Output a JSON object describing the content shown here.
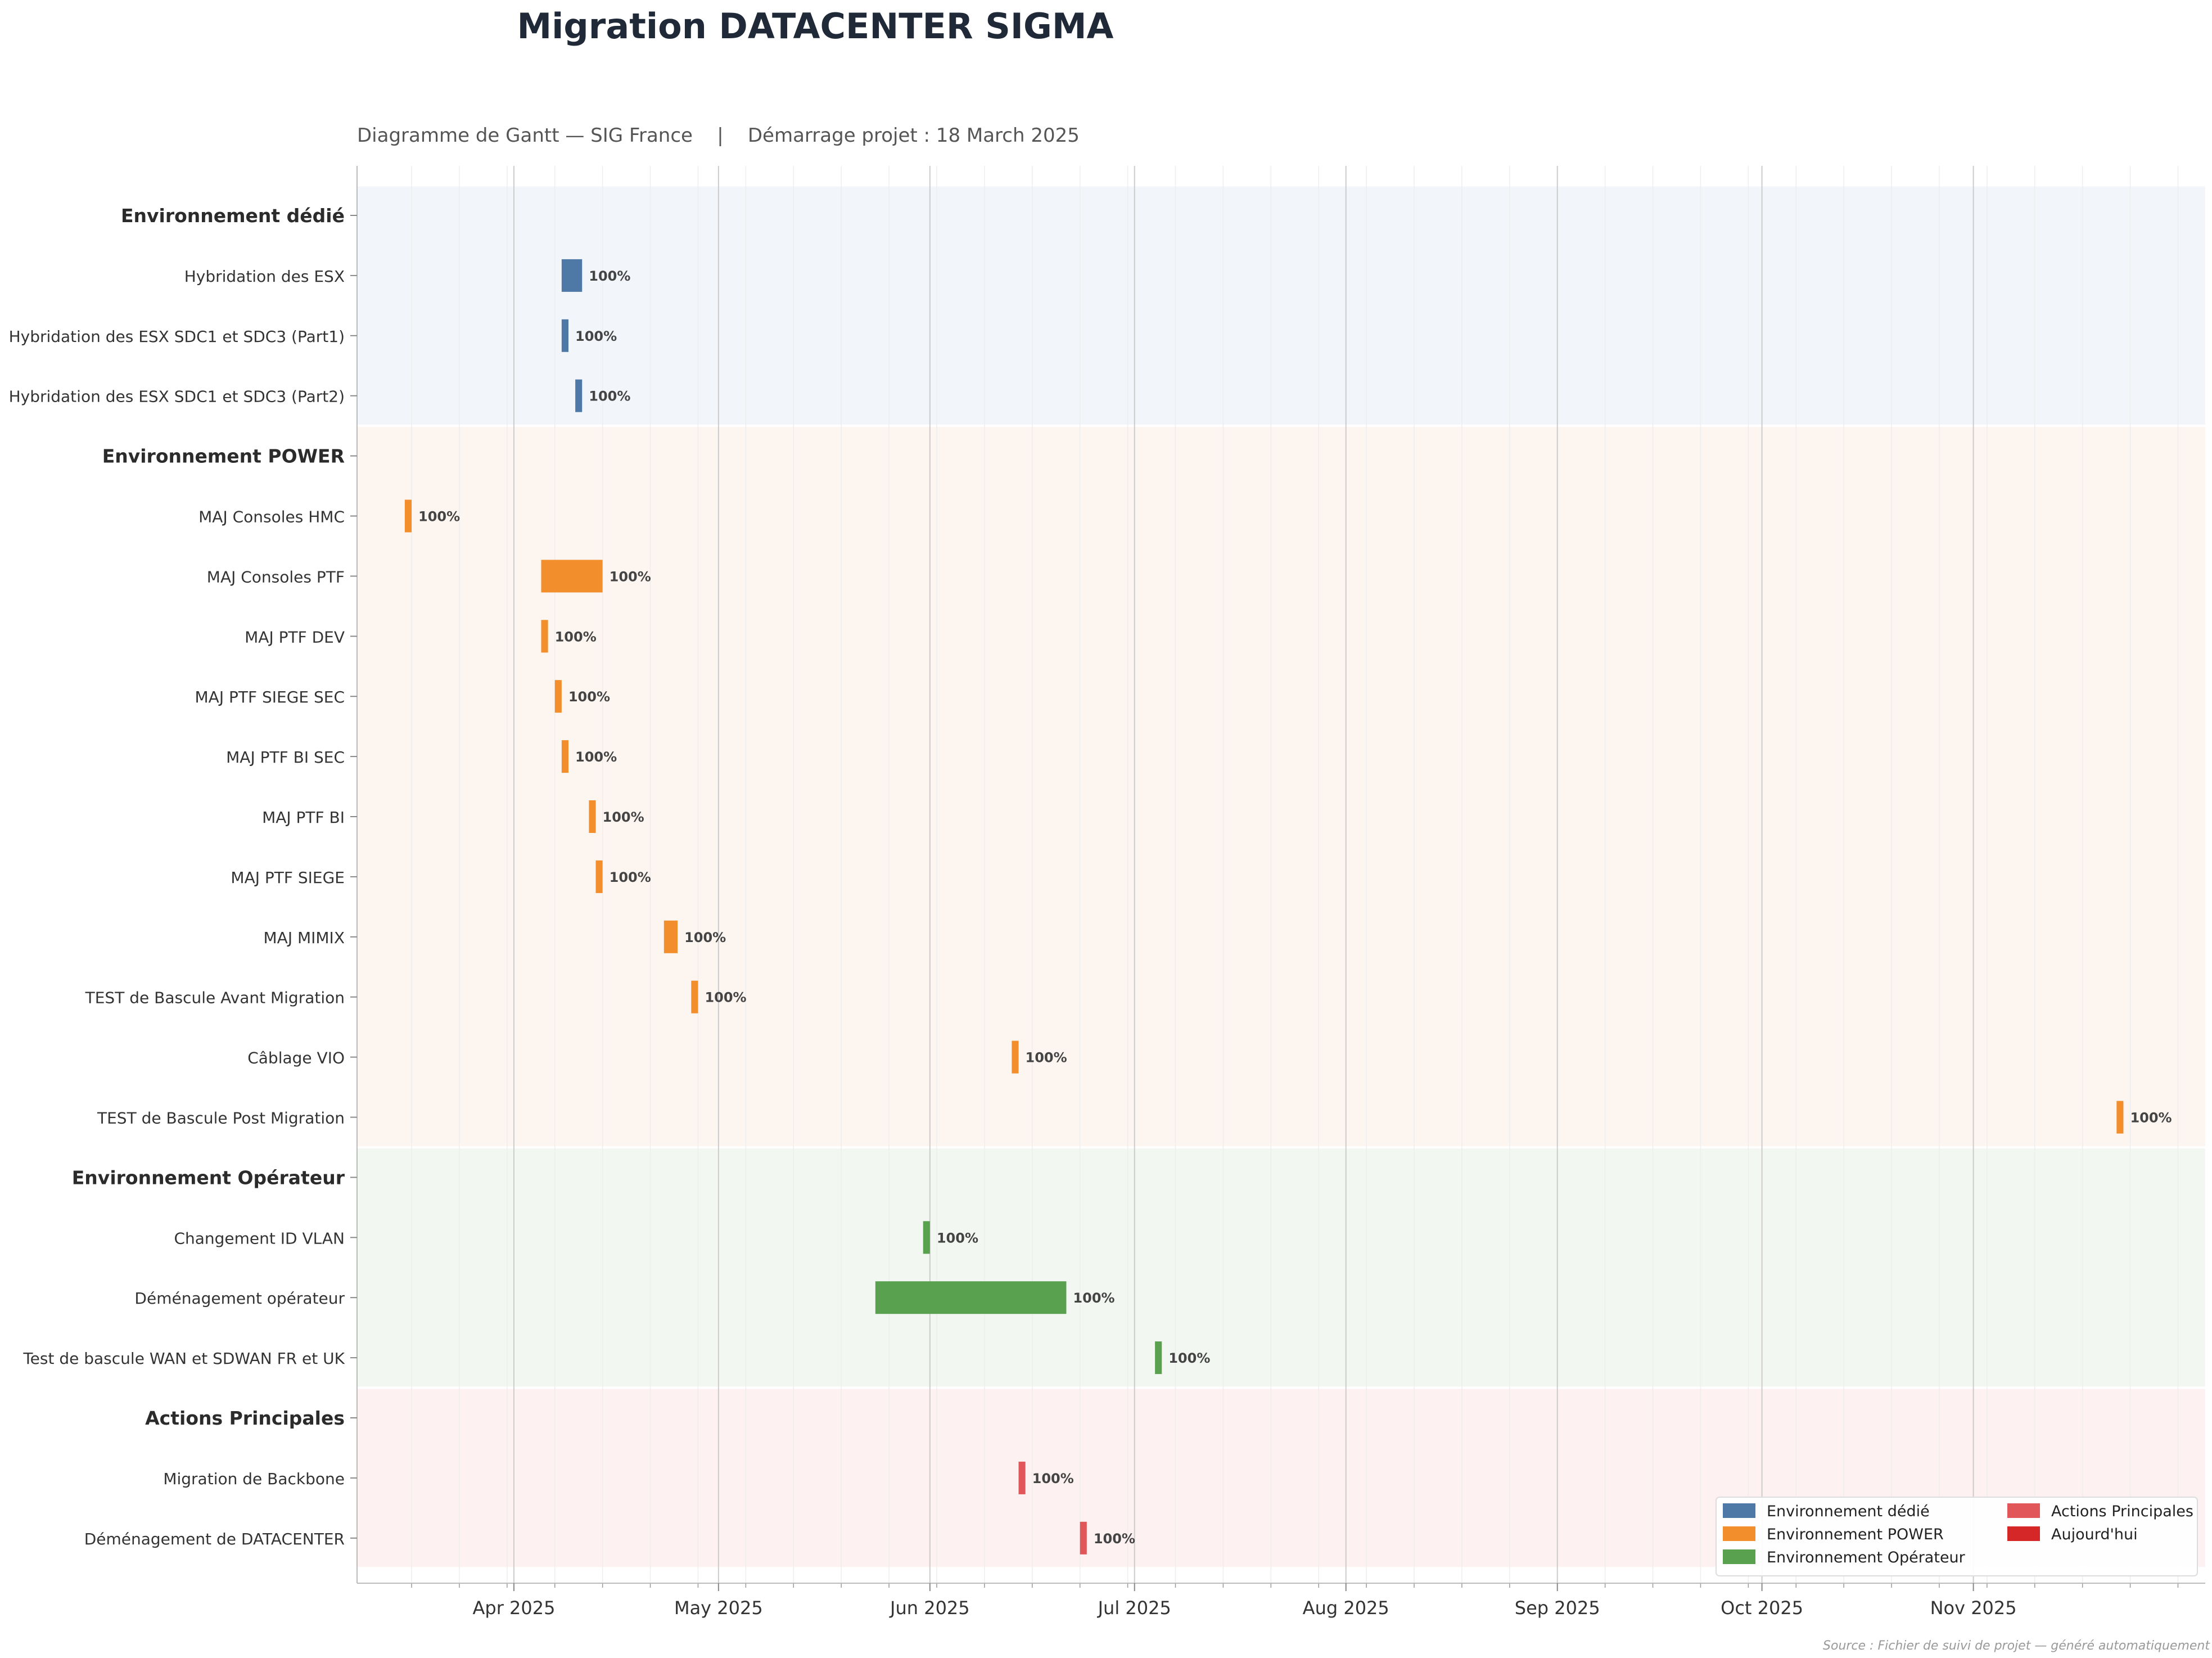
{
  "title": "Migration DATACENTER SIGMA",
  "subtitle": "Diagramme de Gantt — SIG France    |    Démarrage projet : 18 March 2025",
  "footer": "Source : Fichier de suivi de projet — généré automatiquement",
  "chart_data": {
    "type": "gantt",
    "x_range": [
      "2025-03-09",
      "2025-12-05"
    ],
    "x_ticks": [
      {
        "date": "2025-04-01",
        "label": "Apr 2025"
      },
      {
        "date": "2025-05-01",
        "label": "May 2025"
      },
      {
        "date": "2025-06-01",
        "label": "Jun 2025"
      },
      {
        "date": "2025-07-01",
        "label": "Jul 2025"
      },
      {
        "date": "2025-08-01",
        "label": "Aug 2025"
      },
      {
        "date": "2025-09-01",
        "label": "Sep 2025"
      },
      {
        "date": "2025-10-01",
        "label": "Oct 2025"
      },
      {
        "date": "2025-11-01",
        "label": "Nov 2025"
      }
    ],
    "grid": true,
    "legend_position": "bottom-right",
    "legend": [
      {
        "label": "Environnement dédié",
        "color": "#4e79a7"
      },
      {
        "label": "Environnement POWER",
        "color": "#f28e2b"
      },
      {
        "label": "Environnement Opérateur",
        "color": "#59a14f"
      },
      {
        "label": "Actions Principales",
        "color": "#e15759"
      },
      {
        "label": "Aujourd'hui",
        "color": "#d62728"
      }
    ],
    "groups": [
      {
        "name": "Environnement dédié",
        "color": "#4e79a7",
        "band": "#f2f5fa",
        "tasks": [
          {
            "name": "Hybridation des ESX",
            "start": "2025-04-08",
            "end": "2025-04-11",
            "progress": "100%"
          },
          {
            "name": "Hybridation des ESX SDC1 et SDC3 (Part1)",
            "start": "2025-04-08",
            "end": "2025-04-09",
            "progress": "100%"
          },
          {
            "name": "Hybridation des ESX SDC1 et SDC3 (Part2)",
            "start": "2025-04-10",
            "end": "2025-04-11",
            "progress": "100%"
          }
        ]
      },
      {
        "name": "Environnement POWER",
        "color": "#f28e2b",
        "band": "#fdf5f0",
        "tasks": [
          {
            "name": "MAJ Consoles HMC",
            "start": "2025-03-16",
            "end": "2025-03-17",
            "progress": "100%"
          },
          {
            "name": "MAJ Consoles PTF",
            "start": "2025-04-05",
            "end": "2025-04-14",
            "progress": "100%"
          },
          {
            "name": "MAJ PTF DEV",
            "start": "2025-04-05",
            "end": "2025-04-06",
            "progress": "100%"
          },
          {
            "name": "MAJ PTF SIEGE SEC",
            "start": "2025-04-07",
            "end": "2025-04-08",
            "progress": "100%"
          },
          {
            "name": "MAJ PTF BI SEC",
            "start": "2025-04-08",
            "end": "2025-04-09",
            "progress": "100%"
          },
          {
            "name": "MAJ PTF BI",
            "start": "2025-04-12",
            "end": "2025-04-13",
            "progress": "100%"
          },
          {
            "name": "MAJ PTF SIEGE",
            "start": "2025-04-13",
            "end": "2025-04-14",
            "progress": "100%"
          },
          {
            "name": "MAJ MIMIX",
            "start": "2025-04-23",
            "end": "2025-04-25",
            "progress": "100%"
          },
          {
            "name": "TEST de Bascule Avant Migration",
            "start": "2025-04-27",
            "end": "2025-04-28",
            "progress": "100%"
          },
          {
            "name": "Câblage VIO",
            "start": "2025-06-13",
            "end": "2025-06-14",
            "progress": "100%"
          },
          {
            "name": "TEST de Bascule Post Migration",
            "start": "2025-11-22",
            "end": "2025-11-23",
            "progress": "100%"
          }
        ]
      },
      {
        "name": "Environnement Opérateur",
        "color": "#59a14f",
        "band": "#f3f7f1",
        "tasks": [
          {
            "name": "Changement ID VLAN",
            "start": "2025-05-31",
            "end": "2025-06-01",
            "progress": "100%"
          },
          {
            "name": "Déménagement opérateur",
            "start": "2025-05-24",
            "end": "2025-06-21",
            "progress": "100%"
          },
          {
            "name": "Test de bascule WAN et SDWAN FR et UK",
            "start": "2025-07-04",
            "end": "2025-07-05",
            "progress": "100%"
          }
        ]
      },
      {
        "name": "Actions Principales",
        "color": "#e15759",
        "band": "#fdf1f1",
        "tasks": [
          {
            "name": "Migration de Backbone",
            "start": "2025-06-14",
            "end": "2025-06-15",
            "progress": "100%"
          },
          {
            "name": "Déménagement de DATACENTER",
            "start": "2025-06-23",
            "end": "2025-06-24",
            "progress": "100%"
          }
        ]
      }
    ]
  }
}
